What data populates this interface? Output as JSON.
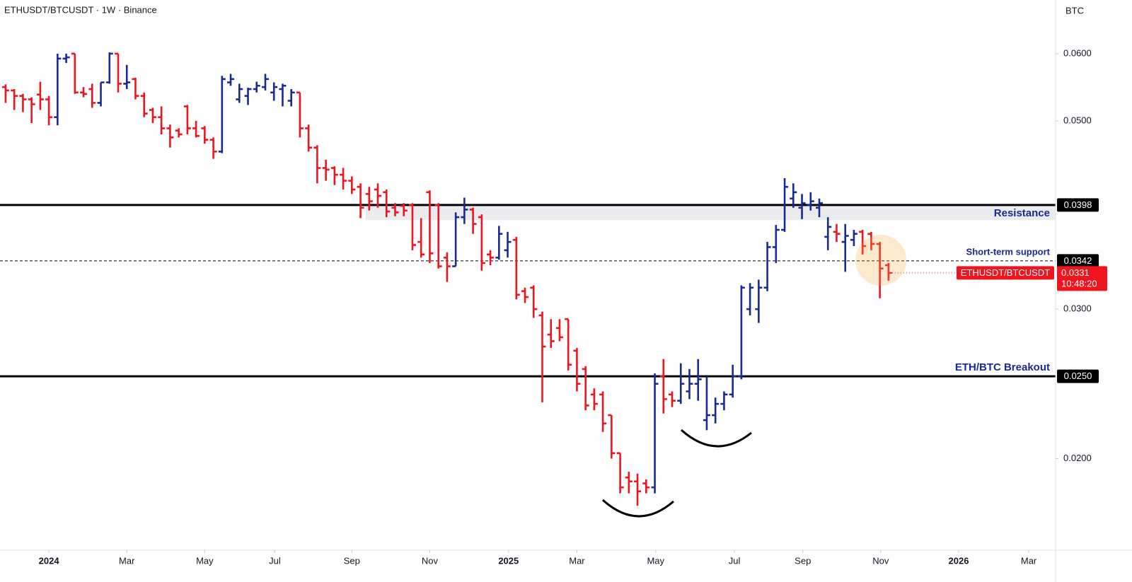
{
  "header": {
    "title": "ETHUSDT/BTCUSDT · 1W · Binance",
    "currency": "BTC"
  },
  "chart_data": {
    "type": "ohlc",
    "log_scale": true,
    "up_color": "#1a2a94",
    "down_color": "#f0141e",
    "xlim": [
      -5.65,
      116.3
    ],
    "ylim": [
      0.0156,
      0.0694
    ],
    "xticks": [
      {
        "value": 0,
        "label": "2024"
      },
      {
        "value": 9.0,
        "label": "Mar"
      },
      {
        "value": 18.0,
        "label": "May"
      },
      {
        "value": 26.1,
        "label": "Jul"
      },
      {
        "value": 35.0,
        "label": "Sep"
      },
      {
        "value": 44.0,
        "label": "Nov"
      },
      {
        "value": 53.1,
        "label": "2025"
      },
      {
        "value": 61.0,
        "label": "Mar"
      },
      {
        "value": 70.1,
        "label": "May"
      },
      {
        "value": 79.2,
        "label": "Jul"
      },
      {
        "value": 87.1,
        "label": "Sep"
      },
      {
        "value": 96.1,
        "label": "Nov"
      },
      {
        "value": 105.1,
        "label": "2026"
      },
      {
        "value": 113.2,
        "label": "Mar"
      }
    ],
    "yticks": [
      {
        "value": 0.02,
        "label": "0.0200"
      },
      {
        "value": 0.03,
        "label": "0.0300"
      },
      {
        "value": 0.05,
        "label": "0.0500"
      },
      {
        "value": 0.06,
        "label": "0.0600"
      }
    ],
    "x": [
      -5,
      -4,
      -3,
      -2,
      -1,
      0,
      1,
      2,
      3,
      4,
      5,
      6,
      7,
      8,
      9,
      10,
      11,
      12,
      13,
      14,
      15,
      16,
      17,
      18,
      19,
      20,
      21,
      22,
      23,
      24,
      25,
      26,
      27,
      28,
      29,
      30,
      31,
      32,
      33,
      34,
      35,
      36,
      37,
      38,
      39,
      40,
      41,
      42,
      43,
      44,
      45,
      46,
      47,
      48,
      49,
      50,
      51,
      52,
      53,
      54,
      55,
      56,
      57,
      58,
      59,
      60,
      61,
      62,
      63,
      64,
      65,
      66,
      67,
      68,
      69,
      70,
      71,
      72,
      73,
      74,
      75,
      76,
      77,
      78,
      79,
      80,
      81,
      82,
      83,
      84,
      85,
      86,
      87,
      88,
      89,
      90,
      91,
      92,
      93,
      94,
      95,
      96,
      97
    ],
    "series": [
      {
        "name": "ETHUSDT/BTCUSDT",
        "countdown": "10:48:20",
        "open": [
          0.0548,
          0.0543,
          0.0535,
          0.053,
          0.0537,
          0.053,
          0.0505,
          0.0592,
          0.06,
          0.054,
          0.0545,
          0.0525,
          0.0555,
          0.06,
          0.0553,
          0.056,
          0.0535,
          0.0515,
          0.0505,
          0.049,
          0.0487,
          0.052,
          0.049,
          0.049,
          0.0475,
          0.046,
          0.0555,
          0.053,
          0.0535,
          0.0545,
          0.0548,
          0.054,
          0.0545,
          0.0528,
          0.054,
          0.049,
          0.0465,
          0.044,
          0.044,
          0.0432,
          0.0425,
          0.0418,
          0.041,
          0.0415,
          0.0412,
          0.0395,
          0.0397,
          0.0398,
          0.036,
          0.0412,
          0.0398,
          0.0345,
          0.0337,
          0.0385,
          0.0393,
          0.0385,
          0.0348,
          0.0345,
          0.0352,
          0.0362,
          0.0315,
          0.0318,
          0.0295,
          0.028,
          0.0285,
          0.0292,
          0.0268,
          0.0255,
          0.0238,
          0.0238,
          0.0225,
          0.0203,
          0.019,
          0.0188,
          0.0187,
          0.0185,
          0.025,
          0.0238,
          0.0234,
          0.024,
          0.0245,
          0.0222,
          0.0225,
          0.0232,
          0.0238,
          0.025,
          0.03,
          0.03,
          0.0318,
          0.0355,
          0.0372,
          0.0405,
          0.0395,
          0.0398,
          0.0395,
          0.0365,
          0.037,
          0.036,
          0.0362,
          0.037,
          0.0368,
          0.0358,
          0.0338
        ],
        "high": [
          0.0552,
          0.0545,
          0.0538,
          0.0533,
          0.0556,
          0.0535,
          0.06,
          0.06,
          0.06,
          0.0548,
          0.0553,
          0.0555,
          0.0602,
          0.06,
          0.0582,
          0.0562,
          0.054,
          0.0518,
          0.052,
          0.0495,
          0.049,
          0.0522,
          0.05,
          0.0493,
          0.0478,
          0.0565,
          0.0568,
          0.0553,
          0.0547,
          0.0556,
          0.0568,
          0.0555,
          0.0553,
          0.0545,
          0.054,
          0.0495,
          0.0468,
          0.045,
          0.0442,
          0.044,
          0.043,
          0.0422,
          0.0418,
          0.0422,
          0.0415,
          0.04,
          0.04,
          0.04,
          0.0384,
          0.0414,
          0.04,
          0.035,
          0.039,
          0.0406,
          0.0395,
          0.0388,
          0.0352,
          0.0376,
          0.037,
          0.0365,
          0.0318,
          0.032,
          0.0298,
          0.0292,
          0.0292,
          0.0292,
          0.027,
          0.0257,
          0.0242,
          0.024,
          0.0225,
          0.0203,
          0.0193,
          0.0192,
          0.0189,
          0.0252,
          0.0262,
          0.024,
          0.0259,
          0.0255,
          0.0262,
          0.025,
          0.0236,
          0.024,
          0.0258,
          0.032,
          0.0322,
          0.0325,
          0.036,
          0.0377,
          0.0428,
          0.0422,
          0.041,
          0.0412,
          0.0405,
          0.0385,
          0.0378,
          0.0378,
          0.0372,
          0.0372,
          0.037,
          0.036,
          0.034
        ],
        "low": [
          0.0525,
          0.0515,
          0.0512,
          0.0497,
          0.0515,
          0.0494,
          0.0494,
          0.0585,
          0.0538,
          0.0533,
          0.0518,
          0.052,
          0.0553,
          0.054,
          0.0545,
          0.053,
          0.0505,
          0.0497,
          0.0482,
          0.0465,
          0.0478,
          0.0482,
          0.0478,
          0.047,
          0.0451,
          0.0458,
          0.055,
          0.0525,
          0.0522,
          0.054,
          0.0543,
          0.0528,
          0.052,
          0.052,
          0.0478,
          0.046,
          0.0422,
          0.0425,
          0.042,
          0.0415,
          0.041,
          0.0384,
          0.0392,
          0.0395,
          0.0385,
          0.0386,
          0.0386,
          0.0352,
          0.0345,
          0.034,
          0.0335,
          0.0323,
          0.0337,
          0.0378,
          0.0368,
          0.0333,
          0.0338,
          0.0343,
          0.0345,
          0.0308,
          0.0305,
          0.0293,
          0.0233,
          0.027,
          0.0275,
          0.0254,
          0.024,
          0.0228,
          0.0228,
          0.0215,
          0.02,
          0.0182,
          0.0182,
          0.0176,
          0.0182,
          0.0182,
          0.0226,
          0.023,
          0.0232,
          0.0235,
          0.0234,
          0.0216,
          0.022,
          0.0228,
          0.0236,
          0.0248,
          0.0295,
          0.0289,
          0.0315,
          0.034,
          0.037,
          0.0395,
          0.0383,
          0.0392,
          0.0385,
          0.0352,
          0.036,
          0.0332,
          0.0356,
          0.0348,
          0.0352,
          0.0309,
          0.0324
        ],
        "close": [
          0.0543,
          0.0535,
          0.053,
          0.0523,
          0.053,
          0.0505,
          0.0592,
          0.0594,
          0.054,
          0.0538,
          0.0525,
          0.0555,
          0.06,
          0.0553,
          0.0555,
          0.0535,
          0.051,
          0.0505,
          0.049,
          0.0478,
          0.0482,
          0.049,
          0.048,
          0.0475,
          0.046,
          0.056,
          0.056,
          0.0545,
          0.0545,
          0.055,
          0.056,
          0.0548,
          0.055,
          0.054,
          0.049,
          0.0465,
          0.044,
          0.0438,
          0.0432,
          0.0425,
          0.0415,
          0.0395,
          0.0402,
          0.0408,
          0.0391,
          0.039,
          0.0392,
          0.0357,
          0.0348,
          0.0349,
          0.0337,
          0.0337,
          0.0385,
          0.0393,
          0.0378,
          0.034,
          0.0345,
          0.0368,
          0.036,
          0.0312,
          0.031,
          0.03,
          0.0271,
          0.0275,
          0.0278,
          0.0258,
          0.0245,
          0.0231,
          0.0232,
          0.022,
          0.0203,
          0.0185,
          0.0188,
          0.0183,
          0.0185,
          0.0245,
          0.0235,
          0.0234,
          0.0245,
          0.0245,
          0.0248,
          0.0225,
          0.0232,
          0.0238,
          0.025,
          0.0318,
          0.0318,
          0.0318,
          0.0355,
          0.0372,
          0.0418,
          0.0412,
          0.04,
          0.0402,
          0.04,
          0.0375,
          0.0368,
          0.0366,
          0.0368,
          0.0356,
          0.0358,
          0.0335,
          0.0331
        ]
      }
    ],
    "zone": {
      "x_start": 36.6,
      "low": 0.0382,
      "high": 0.0398,
      "color": "#e9ebef"
    },
    "levels": [
      {
        "name": "Resistance",
        "value": 0.0398,
        "style": "solid"
      },
      {
        "name": "Short-term support",
        "value": 0.0342,
        "style": "dashed"
      },
      {
        "name": "ETH/BTC Breakout",
        "value": 0.025,
        "value_label": "0.0250",
        "style": "solid"
      }
    ]
  }
}
